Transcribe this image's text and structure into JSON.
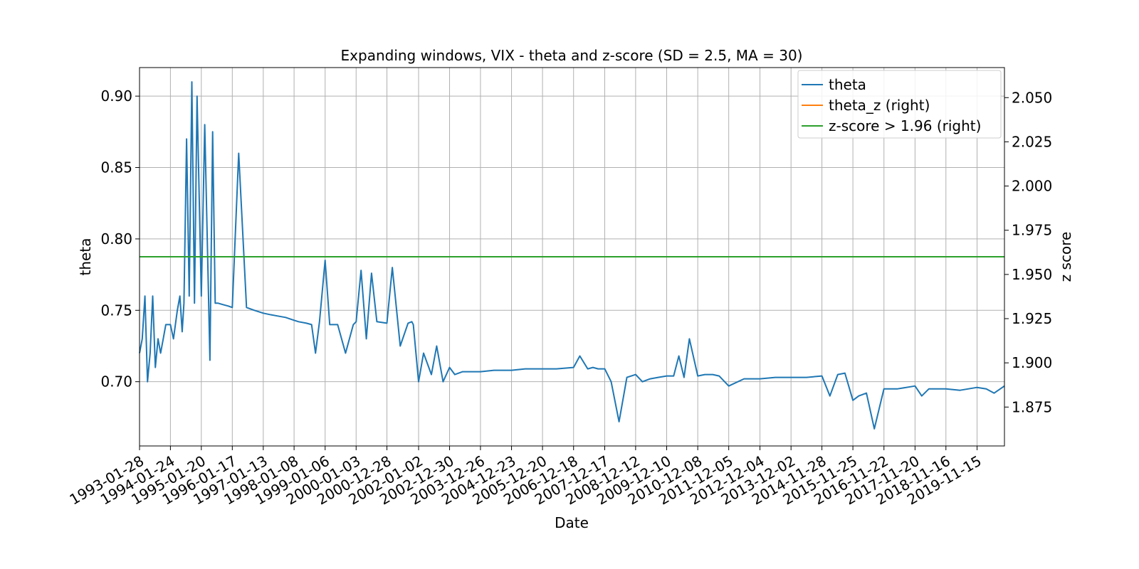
{
  "chart_data": {
    "type": "line",
    "title": "Expanding windows, VIX - theta and z-score (SD = 2.5, MA = 30)",
    "xlabel": "Date",
    "ylabel": "theta",
    "ylabel_right": "z score",
    "grid": true,
    "legend_position": "top-right",
    "xlim": [
      "1993-01-28",
      "2020-09-30"
    ],
    "ylim": [
      0.655,
      0.92
    ],
    "ylim_right": [
      1.853,
      2.067
    ],
    "x_ticks": [
      "1993-01-28",
      "1994-01-24",
      "1995-01-20",
      "1996-01-17",
      "1997-01-13",
      "1998-01-08",
      "1999-01-06",
      "2000-01-03",
      "2000-12-28",
      "2002-01-02",
      "2002-12-30",
      "2003-12-26",
      "2004-12-23",
      "2005-12-20",
      "2006-12-18",
      "2007-12-17",
      "2008-12-12",
      "2009-12-10",
      "2010-12-08",
      "2011-12-05",
      "2012-12-04",
      "2013-12-02",
      "2014-11-28",
      "2015-11-25",
      "2016-11-22",
      "2017-11-20",
      "2018-11-16",
      "2019-11-15"
    ],
    "y_ticks": [
      "0.70",
      "0.75",
      "0.80",
      "0.85",
      "0.90"
    ],
    "y_ticks_right": [
      "1.875",
      "1.900",
      "1.925",
      "1.950",
      "1.975",
      "2.000",
      "2.025",
      "2.050"
    ],
    "series": [
      {
        "name": "theta",
        "axis": "left",
        "color": "#1f77b4",
        "x": [
          "1993-01-28",
          "1993-03-01",
          "1993-04-01",
          "1993-05-01",
          "1993-06-01",
          "1993-07-01",
          "1993-08-01",
          "1993-09-01",
          "1993-10-01",
          "1993-11-01",
          "1993-12-01",
          "1994-01-24",
          "1994-03-01",
          "1994-04-15",
          "1994-05-15",
          "1994-06-10",
          "1994-07-01",
          "1994-08-01",
          "1994-09-01",
          "1994-10-01",
          "1994-11-01",
          "1994-12-01",
          "1995-01-20",
          "1995-03-01",
          "1995-05-01",
          "1995-06-01",
          "1995-07-01",
          "1995-08-01",
          "1995-10-01",
          "1995-12-01",
          "1996-01-17",
          "1996-04-01",
          "1996-07-01",
          "1996-10-01",
          "1997-01-13",
          "1997-04-01",
          "1997-07-01",
          "1997-10-01",
          "1998-01-08",
          "1998-03-01",
          "1998-06-01",
          "1998-08-01",
          "1998-09-15",
          "1998-11-01",
          "1999-01-06",
          "1999-03-01",
          "1999-06-01",
          "1999-09-01",
          "1999-12-01",
          "2000-01-03",
          "2000-03-01",
          "2000-05-01",
          "2000-07-01",
          "2000-09-01",
          "2000-12-28",
          "2001-03-01",
          "2001-06-01",
          "2001-09-01",
          "2001-10-15",
          "2001-11-01",
          "2002-01-02",
          "2002-03-01",
          "2002-06-01",
          "2002-08-01",
          "2002-10-15",
          "2002-12-30",
          "2003-03-01",
          "2003-06-01",
          "2003-09-01",
          "2003-12-26",
          "2004-06-01",
          "2004-12-23",
          "2005-06-01",
          "2005-12-20",
          "2006-06-01",
          "2006-12-18",
          "2007-03-01",
          "2007-06-01",
          "2007-08-01",
          "2007-10-01",
          "2007-12-17",
          "2008-03-01",
          "2008-06-01",
          "2008-09-01",
          "2008-12-12",
          "2009-03-01",
          "2009-06-01",
          "2009-09-01",
          "2009-12-10",
          "2010-03-01",
          "2010-05-01",
          "2010-07-01",
          "2010-09-01",
          "2010-12-08",
          "2011-03-01",
          "2011-06-01",
          "2011-08-15",
          "2011-12-05",
          "2012-06-01",
          "2012-12-04",
          "2013-06-01",
          "2013-12-02",
          "2014-06-01",
          "2014-11-28",
          "2015-03-01",
          "2015-06-01",
          "2015-08-24",
          "2015-11-25",
          "2016-02-01",
          "2016-05-01",
          "2016-08-01",
          "2016-11-22",
          "2017-05-01",
          "2017-11-20",
          "2018-02-06",
          "2018-05-01",
          "2018-11-16",
          "2019-05-01",
          "2019-11-15",
          "2020-03-01",
          "2020-06-01",
          "2020-09-30"
        ],
        "values": [
          0.72,
          0.73,
          0.76,
          0.7,
          0.72,
          0.76,
          0.71,
          0.73,
          0.72,
          0.73,
          0.74,
          0.74,
          0.73,
          0.75,
          0.76,
          0.735,
          0.755,
          0.87,
          0.76,
          0.91,
          0.755,
          0.9,
          0.76,
          0.88,
          0.715,
          0.875,
          0.755,
          0.755,
          0.754,
          0.753,
          0.752,
          0.86,
          0.752,
          0.75,
          0.748,
          0.747,
          0.746,
          0.745,
          0.743,
          0.742,
          0.741,
          0.74,
          0.72,
          0.742,
          0.785,
          0.74,
          0.74,
          0.72,
          0.74,
          0.742,
          0.778,
          0.73,
          0.776,
          0.742,
          0.741,
          0.78,
          0.725,
          0.741,
          0.742,
          0.74,
          0.7,
          0.72,
          0.705,
          0.725,
          0.7,
          0.71,
          0.705,
          0.707,
          0.707,
          0.707,
          0.708,
          0.708,
          0.709,
          0.709,
          0.709,
          0.71,
          0.718,
          0.709,
          0.71,
          0.709,
          0.709,
          0.7,
          0.672,
          0.703,
          0.705,
          0.7,
          0.702,
          0.703,
          0.704,
          0.704,
          0.718,
          0.703,
          0.73,
          0.704,
          0.705,
          0.705,
          0.704,
          0.697,
          0.702,
          0.702,
          0.703,
          0.703,
          0.703,
          0.704,
          0.69,
          0.705,
          0.706,
          0.687,
          0.69,
          0.692,
          0.667,
          0.695,
          0.695,
          0.697,
          0.69,
          0.695,
          0.695,
          0.694,
          0.696,
          0.695,
          0.692,
          0.697
        ]
      },
      {
        "name": "theta_z (right)",
        "axis": "right",
        "color": "#ff7f0e",
        "x": [],
        "values": []
      },
      {
        "name": "z-score > 1.96 (right)",
        "axis": "right",
        "color": "#2ca02c",
        "x": [
          "1993-01-28",
          "2020-09-30"
        ],
        "values": [
          1.96,
          1.96
        ]
      }
    ]
  }
}
